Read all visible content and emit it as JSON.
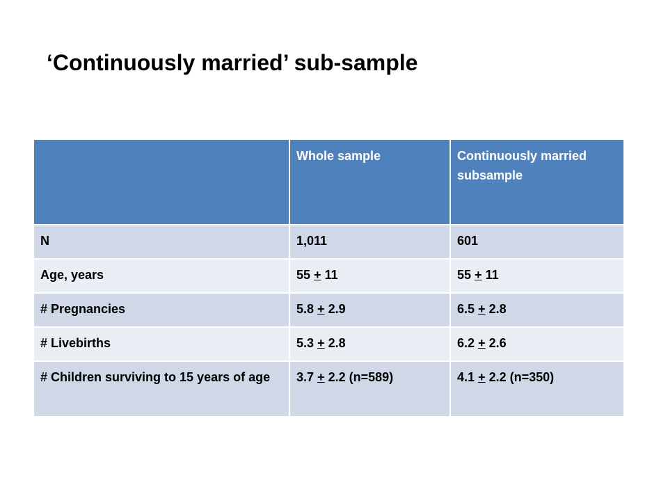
{
  "slide": {
    "title": "‘Continuously married’ sub-sample"
  },
  "table": {
    "headers": [
      "",
      "Whole sample",
      "Continuously married subsample"
    ],
    "rows": [
      {
        "label": "N",
        "whole": {
          "mean": "1,011",
          "sd": "",
          "extra": ""
        },
        "married": {
          "mean": "601",
          "sd": "",
          "extra": ""
        }
      },
      {
        "label": "Age, years",
        "whole": {
          "mean": "55",
          "sd": "11",
          "extra": ""
        },
        "married": {
          "mean": "55",
          "sd": "11",
          "extra": ""
        }
      },
      {
        "label": "# Pregnancies",
        "whole": {
          "mean": "5.8",
          "sd": "2.9",
          "extra": ""
        },
        "married": {
          "mean": "6.5",
          "sd": "2.8",
          "extra": ""
        }
      },
      {
        "label": "# Livebirths",
        "whole": {
          "mean": "5.3",
          "sd": "2.8",
          "extra": ""
        },
        "married": {
          "mean": "6.2",
          "sd": "2.6",
          "extra": ""
        }
      },
      {
        "label": "# Children surviving to 15 years of age",
        "whole": {
          "mean": "3.7",
          "sd": "2.2",
          "extra": "(n=589)"
        },
        "married": {
          "mean": "4.1",
          "sd": "2.2",
          "extra": "(n=350)"
        }
      }
    ],
    "plus_minus_symbol": "+"
  }
}
